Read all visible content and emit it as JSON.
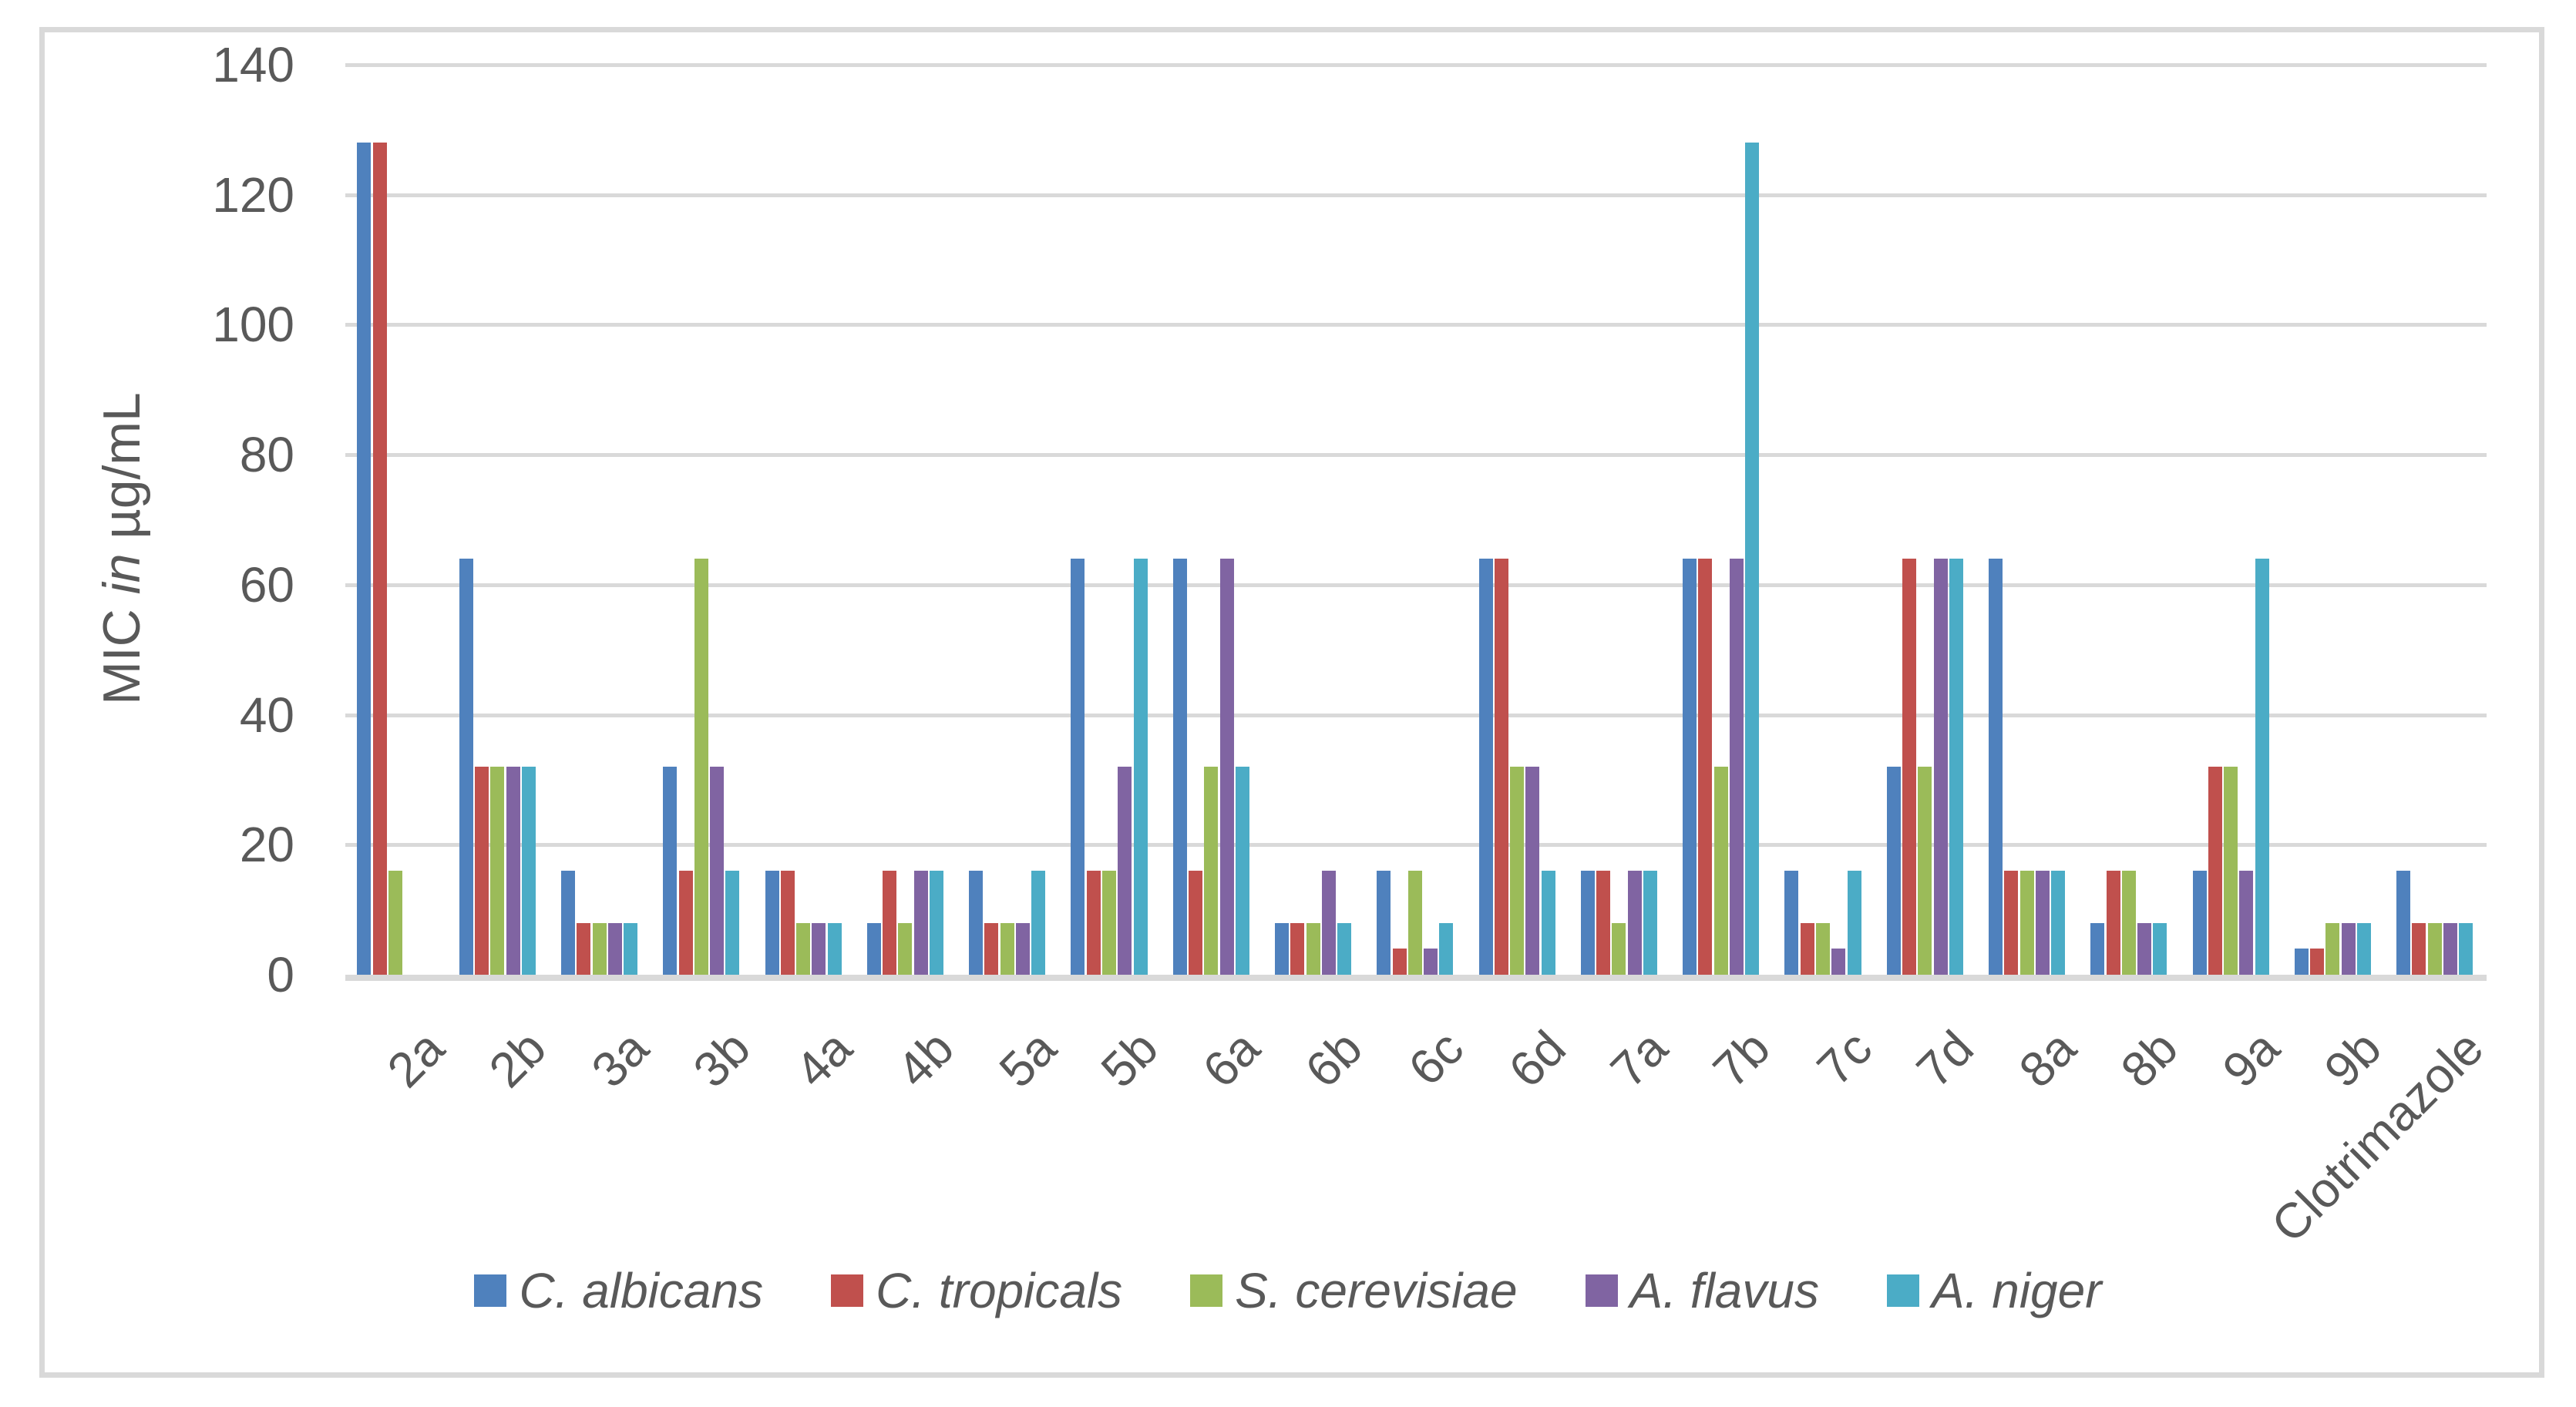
{
  "chart_data": {
    "type": "bar",
    "title": "",
    "ylabel": "MIC in µg/mL",
    "ylabel_parts": [
      "MIC ",
      "in",
      " µg/mL"
    ],
    "xlabel": "",
    "ylim": [
      0,
      140
    ],
    "ytick_step": 20,
    "yticks": [
      0,
      20,
      40,
      60,
      80,
      100,
      120,
      140
    ],
    "grid": true,
    "legend_position": "bottom",
    "categories": [
      "2a",
      "2b",
      "3a",
      "3b",
      "4a",
      "4b",
      "5a",
      "5b",
      "6a",
      "6b",
      "6c",
      "6d",
      "7a",
      "7b",
      "7c",
      "7d",
      "8a",
      "8b",
      "9a",
      "9b",
      "Clotrimazole"
    ],
    "series": [
      {
        "name": "C. albicans",
        "color": "#4F81BD",
        "values": [
          128,
          64,
          16,
          32,
          16,
          8,
          16,
          64,
          64,
          8,
          16,
          64,
          16,
          64,
          16,
          32,
          64,
          8,
          16,
          4,
          16
        ]
      },
      {
        "name": "C. tropicals",
        "color": "#C0504D",
        "values": [
          128,
          32,
          8,
          16,
          16,
          16,
          8,
          16,
          16,
          8,
          4,
          64,
          16,
          64,
          8,
          64,
          16,
          16,
          32,
          4,
          8
        ]
      },
      {
        "name": "S. cerevisiae",
        "color": "#9BBB59",
        "values": [
          16,
          32,
          8,
          64,
          8,
          8,
          8,
          16,
          32,
          8,
          16,
          32,
          8,
          32,
          8,
          32,
          16,
          16,
          32,
          8,
          8
        ]
      },
      {
        "name": "A. flavus",
        "color": "#8064A2",
        "values": [
          0,
          32,
          8,
          32,
          8,
          16,
          8,
          32,
          64,
          16,
          4,
          32,
          16,
          64,
          4,
          64,
          16,
          8,
          16,
          8,
          8
        ]
      },
      {
        "name": "A. niger",
        "color": "#4BACC6",
        "values": [
          0,
          32,
          8,
          16,
          8,
          16,
          16,
          64,
          32,
          8,
          8,
          16,
          16,
          128,
          16,
          64,
          16,
          8,
          64,
          8,
          8
        ]
      }
    ]
  },
  "colors": {
    "gridline": "#D9D9D9",
    "axis_text": "#595959",
    "background": "#FFFFFF"
  }
}
